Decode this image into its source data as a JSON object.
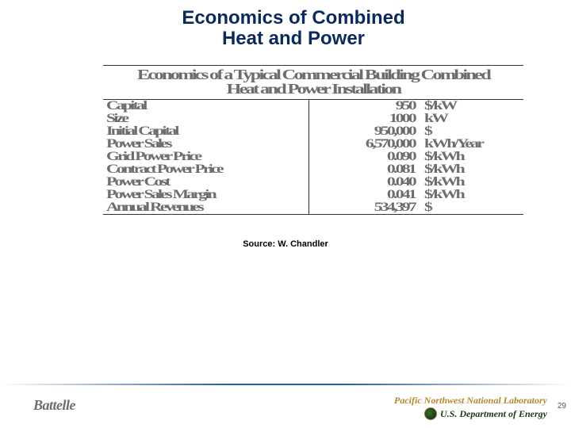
{
  "title_line1": "Economics of Combined",
  "title_line2": "Heat and Power",
  "table_title_line1": "Economics of a Typical Commercial Building Combined",
  "table_title_line2": "Heat and Power Installation",
  "rows": [
    {
      "label": "Capital",
      "value": "950",
      "unit": "$/kW"
    },
    {
      "label": "Size",
      "value": "1000",
      "unit": "kW"
    },
    {
      "label": "Initial Capital",
      "value": "950,000",
      "unit": "$"
    },
    {
      "label": "Power Sales",
      "value": "6,570,000",
      "unit": "kWh/Year"
    },
    {
      "label": "Grid Power Price",
      "value": "0.090",
      "unit": "$/kWh"
    },
    {
      "label": "Contract Power Price",
      "value": "0.081",
      "unit": "$/kWh"
    },
    {
      "label": "Power Cost",
      "value": "0.040",
      "unit": "$/kWh"
    },
    {
      "label": "Power Sales Margin",
      "value": "0.041",
      "unit": "$/kWh"
    },
    {
      "label": "Annual Revenues",
      "value": "534,397",
      "unit": "$"
    }
  ],
  "source": "Source: W. Chandler",
  "footer": {
    "battelle": "Battelle",
    "pnnl": "Pacific Northwest National Laboratory",
    "doe": "U.S. Department of Energy",
    "page": "29"
  },
  "colors": {
    "title": "#0a2a5c",
    "table_text": "#6d6d6d",
    "rule": "#333333",
    "pnnl": "#b5872e",
    "doe": "#1d3a16"
  }
}
